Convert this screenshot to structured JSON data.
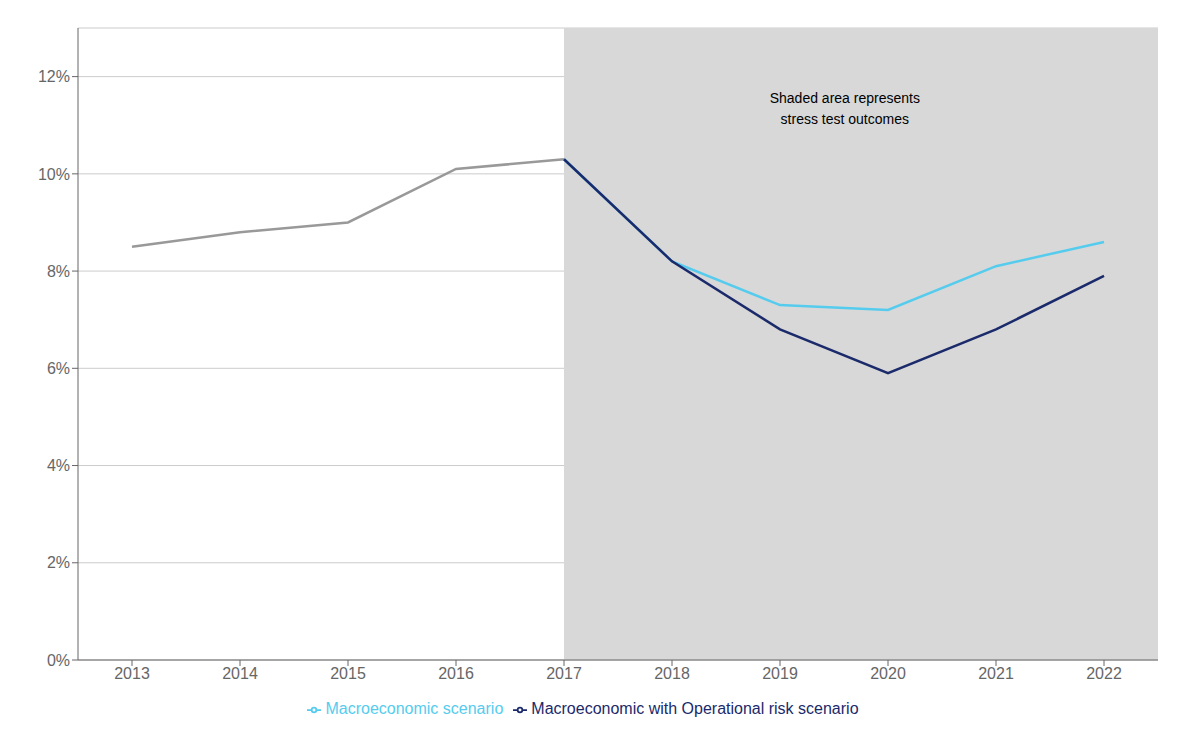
{
  "chart_data": {
    "type": "line",
    "x": [
      2013,
      2014,
      2015,
      2016,
      2017,
      2018,
      2019,
      2020,
      2021,
      2022
    ],
    "series": [
      {
        "color": "#999999",
        "values": [
          0.085,
          0.088,
          0.09,
          0.101,
          0.103,
          null,
          null,
          null,
          null,
          null
        ]
      },
      {
        "name": "Macroeconomic scenario",
        "color": "#55CCEE",
        "values": [
          null,
          null,
          null,
          null,
          0.103,
          0.082,
          0.073,
          0.072,
          0.081,
          0.086
        ]
      },
      {
        "name": "Macroeconomic with Operational risk scenario",
        "color": "#1B2A6B",
        "values": [
          null,
          null,
          null,
          null,
          0.103,
          0.082,
          0.068,
          0.059,
          0.068,
          0.079
        ]
      }
    ],
    "spans": [
      {
        "x0": 2017,
        "x1": 2022.5,
        "color": "#D8D8D8"
      }
    ],
    "annotations": [
      {
        "text": "Shaded area represents\nstress test outcomes",
        "x": 2019.6,
        "y": 0.1175
      }
    ],
    "xlim": [
      2012.5,
      2022.5
    ],
    "xticks": [
      2013,
      2014,
      2015,
      2016,
      2017,
      2018,
      2019,
      2020,
      2021,
      2022
    ],
    "ylim": [
      0,
      0.13
    ],
    "yticks": [
      {
        "value": 0.0,
        "label": "0%"
      },
      {
        "value": 0.02,
        "label": "2%"
      },
      {
        "value": 0.04,
        "label": "4%"
      },
      {
        "value": 0.06,
        "label": "6%"
      },
      {
        "value": 0.08,
        "label": "8%"
      },
      {
        "value": 0.1,
        "label": "10%"
      },
      {
        "value": 0.12,
        "label": "12%"
      }
    ],
    "grid": true,
    "legend": "bottom"
  }
}
